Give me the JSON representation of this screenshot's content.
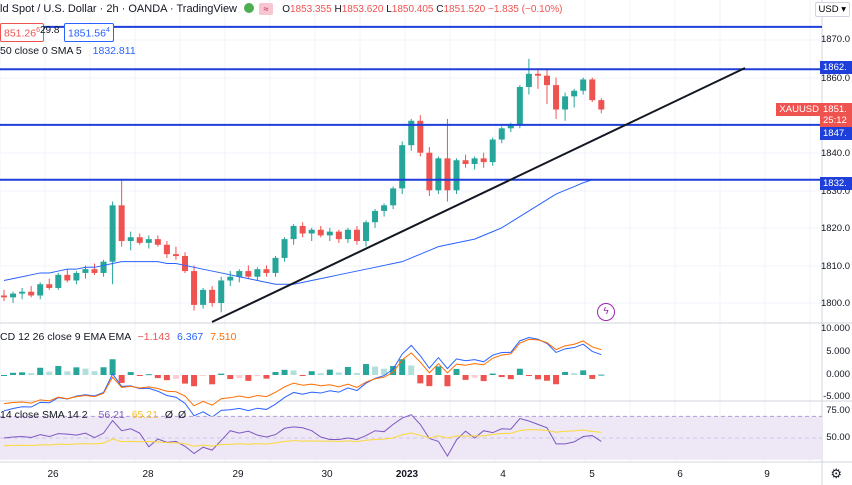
{
  "header": {
    "title_fragment": "ld Spot / U.S. Dollar · 2h · OANDA · TradingView",
    "o_label": "O",
    "o_value": "1853.355",
    "h_label": "H",
    "h_value": "1853.620",
    "l_label": "L",
    "l_value": "1850.405",
    "c_label": "C",
    "c_value": "1851.520",
    "change": "−1.835 (−0.10%)",
    "bid": "851.26",
    "bid_suffix": "6",
    "spread": "29.8",
    "ask": "1851.56",
    "ask_suffix": "4",
    "currency": "USD"
  },
  "indicators": {
    "sma_label": "50 close 0 SMA 5",
    "sma_value": "1832.811",
    "macd_label": "CD 12 26 close 9 EMA EMA",
    "macd_values": [
      "−1.143",
      "6.367",
      "7.510"
    ],
    "rsi_label": "14 close SMA 14 2",
    "rsi_values": [
      "56.21",
      "65.21",
      "Ø",
      "Ø"
    ]
  },
  "price_axis": {
    "ticks": [
      "1870.0",
      "1860.0",
      "1840.0",
      "1830.0",
      "1820.0",
      "1810.0",
      "1800.0"
    ],
    "macd_ticks": [
      "10.000",
      "5.000",
      "0.000",
      "-5.000"
    ],
    "rsi_ticks": [
      "75.00",
      "50.00"
    ]
  },
  "price_labels": {
    "level_1862": "1862.",
    "symbol": "XAUUSD",
    "last_price": "1851.",
    "countdown": "25:12",
    "level_1847": "1847.",
    "level_1832": "1832."
  },
  "time_axis": [
    "26",
    "28",
    "29",
    "30",
    "2023",
    "4",
    "5",
    "6",
    "9"
  ],
  "colors": {
    "up": "#26a69a",
    "down": "#ef5350",
    "level_line": "#1e3fd9",
    "sma": "#2962ff",
    "macd_line": "#2962ff",
    "signal_line": "#ff6d00",
    "rsi_line": "#7e57c2",
    "rsi_band": "#ede7f6"
  },
  "chart_data": {
    "type": "candlestick",
    "candles": [
      [
        1802.0,
        1803.5,
        1800.5,
        1801.5
      ],
      [
        1801.5,
        1803.0,
        1800.0,
        1802.5
      ],
      [
        1802.5,
        1804.0,
        1801.0,
        1803.0
      ],
      [
        1803.0,
        1804.5,
        1801.5,
        1802.0
      ],
      [
        1802.0,
        1805.5,
        1801.0,
        1805.0
      ],
      [
        1805.0,
        1806.5,
        1803.5,
        1804.0
      ],
      [
        1804.0,
        1808.0,
        1803.5,
        1807.5
      ],
      [
        1807.5,
        1809.0,
        1805.5,
        1806.0
      ],
      [
        1806.0,
        1808.5,
        1805.0,
        1808.0
      ],
      [
        1808.0,
        1810.0,
        1806.5,
        1809.0
      ],
      [
        1809.0,
        1810.5,
        1807.5,
        1808.0
      ],
      [
        1808.0,
        1811.5,
        1807.0,
        1811.0
      ],
      [
        1811.0,
        1827.0,
        1805.0,
        1826.0
      ],
      [
        1826.0,
        1833.0,
        1815.0,
        1816.5
      ],
      [
        1816.5,
        1819.0,
        1814.0,
        1817.5
      ],
      [
        1817.5,
        1818.5,
        1815.5,
        1816.0
      ],
      [
        1816.0,
        1818.0,
        1814.5,
        1817.0
      ],
      [
        1817.0,
        1818.0,
        1815.0,
        1815.5
      ],
      [
        1815.5,
        1816.5,
        1812.0,
        1813.0
      ],
      [
        1813.0,
        1815.0,
        1811.5,
        1812.5
      ],
      [
        1812.5,
        1813.5,
        1808.0,
        1808.5
      ],
      [
        1808.5,
        1810.0,
        1798.0,
        1799.5
      ],
      [
        1799.5,
        1804.0,
        1798.5,
        1803.5
      ],
      [
        1803.5,
        1804.5,
        1799.0,
        1800.0
      ],
      [
        1800.0,
        1807.0,
        1797.5,
        1806.0
      ],
      [
        1806.0,
        1808.5,
        1804.5,
        1807.0
      ],
      [
        1807.0,
        1809.0,
        1805.5,
        1808.5
      ],
      [
        1808.5,
        1810.0,
        1806.5,
        1807.0
      ],
      [
        1807.0,
        1809.5,
        1806.0,
        1809.0
      ],
      [
        1809.0,
        1810.0,
        1807.0,
        1808.0
      ],
      [
        1808.0,
        1812.5,
        1807.0,
        1812.0
      ],
      [
        1812.0,
        1817.5,
        1811.0,
        1817.0
      ],
      [
        1817.0,
        1821.0,
        1815.5,
        1820.5
      ],
      [
        1820.5,
        1821.5,
        1817.5,
        1818.5
      ],
      [
        1818.5,
        1820.0,
        1816.5,
        1819.5
      ],
      [
        1819.5,
        1820.5,
        1817.5,
        1818.0
      ],
      [
        1818.0,
        1820.0,
        1816.5,
        1819.0
      ],
      [
        1819.0,
        1819.5,
        1816.0,
        1817.0
      ],
      [
        1817.0,
        1820.0,
        1816.0,
        1819.5
      ],
      [
        1819.5,
        1820.5,
        1815.5,
        1816.5
      ],
      [
        1816.5,
        1822.0,
        1815.0,
        1821.5
      ],
      [
        1821.5,
        1825.0,
        1820.0,
        1824.5
      ],
      [
        1824.5,
        1826.5,
        1823.0,
        1826.0
      ],
      [
        1826.0,
        1831.0,
        1825.0,
        1830.5
      ],
      [
        1830.5,
        1843.0,
        1829.0,
        1842.0
      ],
      [
        1842.0,
        1849.0,
        1840.5,
        1848.5
      ],
      [
        1848.5,
        1850.0,
        1839.0,
        1840.0
      ],
      [
        1840.0,
        1841.5,
        1828.5,
        1830.0
      ],
      [
        1830.0,
        1839.0,
        1829.0,
        1838.5
      ],
      [
        1838.5,
        1849.0,
        1827.0,
        1830.0
      ],
      [
        1830.0,
        1838.5,
        1829.0,
        1838.0
      ],
      [
        1838.0,
        1839.5,
        1836.0,
        1837.0
      ],
      [
        1837.0,
        1839.0,
        1835.5,
        1838.5
      ],
      [
        1838.5,
        1840.0,
        1836.0,
        1837.5
      ],
      [
        1837.5,
        1844.0,
        1836.5,
        1843.5
      ],
      [
        1843.5,
        1847.0,
        1842.5,
        1846.5
      ],
      [
        1846.5,
        1848.0,
        1845.5,
        1847.5
      ],
      [
        1847.5,
        1858.0,
        1846.5,
        1857.5
      ],
      [
        1857.5,
        1865.0,
        1855.5,
        1861.0
      ],
      [
        1861.0,
        1862.5,
        1857.0,
        1860.5
      ],
      [
        1860.5,
        1862.0,
        1853.0,
        1858.0
      ],
      [
        1858.0,
        1860.0,
        1849.0,
        1851.5
      ],
      [
        1851.5,
        1856.0,
        1848.5,
        1855.0
      ],
      [
        1855.0,
        1857.0,
        1852.0,
        1856.5
      ],
      [
        1856.5,
        1860.0,
        1855.5,
        1859.5
      ],
      [
        1859.5,
        1860.0,
        1853.5,
        1854.0
      ],
      [
        1854.0,
        1854.5,
        1850.5,
        1851.5
      ]
    ],
    "levels": [
      1873.5,
      1862.2,
      1847.4,
      1832.8
    ]
  }
}
